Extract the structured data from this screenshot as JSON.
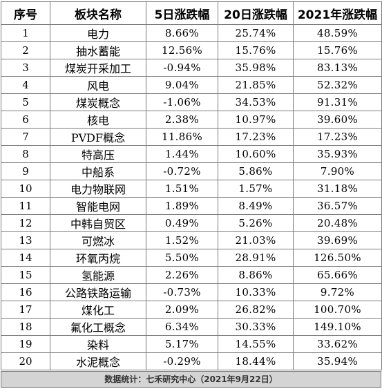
{
  "table": {
    "headers": [
      "序号",
      "板块名称",
      "5日涨跌幅",
      "20日涨跌幅",
      "2021年涨跌幅"
    ],
    "rows": [
      [
        "1",
        "电力",
        "8.66%",
        "25.74%",
        "48.59%"
      ],
      [
        "2",
        "抽水蓄能",
        "12.56%",
        "15.76%",
        "15.76%"
      ],
      [
        "3",
        "煤炭开采加工",
        "-0.94%",
        "35.98%",
        "83.13%"
      ],
      [
        "4",
        "风电",
        "9.04%",
        "21.85%",
        "52.32%"
      ],
      [
        "5",
        "煤炭概念",
        "-1.06%",
        "34.53%",
        "91.31%"
      ],
      [
        "6",
        "核电",
        "2.38%",
        "10.97%",
        "39.60%"
      ],
      [
        "7",
        "PVDF概念",
        "11.86%",
        "17.23%",
        "17.23%"
      ],
      [
        "8",
        "特高压",
        "1.44%",
        "10.60%",
        "35.93%"
      ],
      [
        "9",
        "中船系",
        "-0.72%",
        "5.86%",
        "7.90%"
      ],
      [
        "10",
        "电力物联网",
        "1.51%",
        "1.57%",
        "31.18%"
      ],
      [
        "11",
        "智能电网",
        "1.89%",
        "8.49%",
        "36.57%"
      ],
      [
        "12",
        "中韩自贸区",
        "0.49%",
        "5.26%",
        "20.48%"
      ],
      [
        "13",
        "可燃冰",
        "1.52%",
        "21.03%",
        "39.69%"
      ],
      [
        "14",
        "环氧丙烷",
        "5.50%",
        "28.91%",
        "126.50%"
      ],
      [
        "15",
        "氢能源",
        "2.26%",
        "8.86%",
        "65.66%"
      ],
      [
        "16",
        "公路铁路运输",
        "-0.73%",
        "10.33%",
        "9.72%"
      ],
      [
        "17",
        "煤化工",
        "2.09%",
        "26.82%",
        "100.70%"
      ],
      [
        "18",
        "氟化工概念",
        "6.34%",
        "30.33%",
        "149.10%"
      ],
      [
        "19",
        "染料",
        "5.17%",
        "14.55%",
        "33.62%"
      ],
      [
        "20",
        "水泥概念",
        "-0.29%",
        "18.44%",
        "35.94%"
      ]
    ]
  },
  "footer": {
    "source": "数据统计：七禾研究中心（2021年9月22日）"
  },
  "colors": {
    "border": "#7a7a7a",
    "footer_bg": "#d4d4d4",
    "text": "#000000"
  }
}
